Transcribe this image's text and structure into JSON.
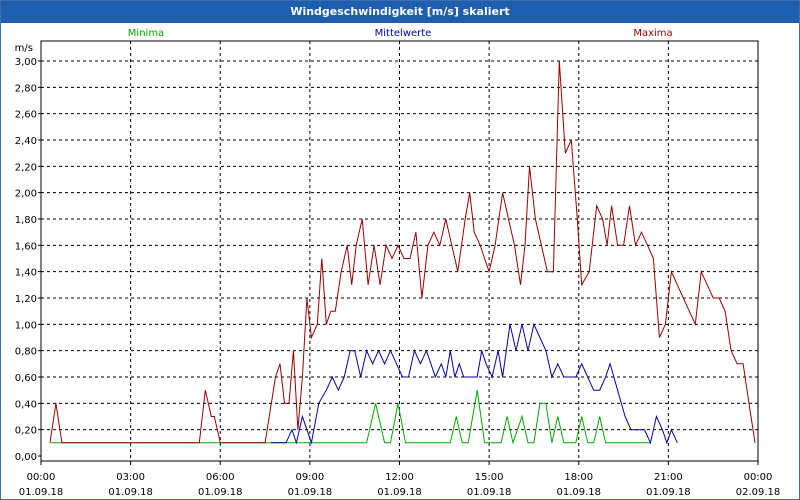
{
  "window": {
    "title": "Windgeschwindigkeit [m/s] skaliert"
  },
  "chart_data": {
    "type": "line",
    "title": "Windgeschwindigkeit [m/s] skaliert",
    "ylabel": "m/s",
    "xlabel": "",
    "ylim": [
      0,
      3.0
    ],
    "xlim_hours": [
      0,
      24
    ],
    "grid": true,
    "legend": "top",
    "y_ticks": [
      "0,00",
      "0,20",
      "0,40",
      "0,60",
      "0,80",
      "1,00",
      "1,20",
      "1,40",
      "1,60",
      "1,80",
      "2,00",
      "2,20",
      "2,40",
      "2,60",
      "2,80",
      "3,00"
    ],
    "x_ticks": [
      {
        "time": "00:00",
        "date": "01.09.18"
      },
      {
        "time": "03:00",
        "date": "01.09.18"
      },
      {
        "time": "06:00",
        "date": "01.09.18"
      },
      {
        "time": "09:00",
        "date": "01.09.18"
      },
      {
        "time": "12:00",
        "date": "01.09.18"
      },
      {
        "time": "15:00",
        "date": "01.09.18"
      },
      {
        "time": "18:00",
        "date": "01.09.18"
      },
      {
        "time": "21:00",
        "date": "01.09.18"
      },
      {
        "time": "00:00",
        "date": "02.09.18"
      }
    ],
    "series": [
      {
        "name": "Minima",
        "color": "#00aa00",
        "points": [
          [
            0.33,
            0.1
          ],
          [
            8.8,
            0.1
          ],
          [
            9.1,
            0.1
          ],
          [
            10.9,
            0.1
          ],
          [
            11.2,
            0.4
          ],
          [
            11.5,
            0.1
          ],
          [
            11.7,
            0.1
          ],
          [
            11.95,
            0.4
          ],
          [
            12.2,
            0.1
          ],
          [
            13.7,
            0.1
          ],
          [
            13.9,
            0.3
          ],
          [
            14.1,
            0.1
          ],
          [
            14.3,
            0.1
          ],
          [
            14.6,
            0.5
          ],
          [
            14.85,
            0.1
          ],
          [
            15.4,
            0.1
          ],
          [
            15.6,
            0.3
          ],
          [
            15.8,
            0.1
          ],
          [
            16.1,
            0.3
          ],
          [
            16.3,
            0.1
          ],
          [
            16.5,
            0.1
          ],
          [
            16.7,
            0.4
          ],
          [
            16.9,
            0.4
          ],
          [
            17.1,
            0.1
          ],
          [
            17.3,
            0.3
          ],
          [
            17.5,
            0.1
          ],
          [
            17.7,
            0.1
          ],
          [
            17.9,
            0.1
          ],
          [
            18.1,
            0.3
          ],
          [
            18.3,
            0.1
          ],
          [
            18.5,
            0.1
          ],
          [
            18.7,
            0.3
          ],
          [
            18.9,
            0.1
          ],
          [
            20.4,
            0.1
          ]
        ]
      },
      {
        "name": "Mittelwerte",
        "color": "#0000aa",
        "points": [
          [
            7.7,
            0.1
          ],
          [
            8.2,
            0.1
          ],
          [
            8.4,
            0.2
          ],
          [
            8.55,
            0.1
          ],
          [
            8.75,
            0.3
          ],
          [
            8.9,
            0.2
          ],
          [
            9.05,
            0.1
          ],
          [
            9.3,
            0.4
          ],
          [
            9.55,
            0.5
          ],
          [
            9.75,
            0.6
          ],
          [
            9.95,
            0.5
          ],
          [
            10.15,
            0.6
          ],
          [
            10.35,
            0.8
          ],
          [
            10.5,
            0.8
          ],
          [
            10.7,
            0.6
          ],
          [
            10.9,
            0.8
          ],
          [
            11.1,
            0.7
          ],
          [
            11.3,
            0.8
          ],
          [
            11.5,
            0.7
          ],
          [
            11.7,
            0.8
          ],
          [
            11.9,
            0.7
          ],
          [
            12.1,
            0.6
          ],
          [
            12.3,
            0.6
          ],
          [
            12.5,
            0.8
          ],
          [
            12.7,
            0.7
          ],
          [
            12.9,
            0.8
          ],
          [
            13.05,
            0.7
          ],
          [
            13.2,
            0.6
          ],
          [
            13.4,
            0.7
          ],
          [
            13.55,
            0.6
          ],
          [
            13.7,
            0.8
          ],
          [
            13.85,
            0.6
          ],
          [
            14.0,
            0.7
          ],
          [
            14.15,
            0.6
          ],
          [
            14.3,
            0.6
          ],
          [
            14.45,
            0.6
          ],
          [
            14.6,
            0.6
          ],
          [
            14.75,
            0.8
          ],
          [
            14.9,
            0.7
          ],
          [
            15.1,
            0.6
          ],
          [
            15.3,
            0.8
          ],
          [
            15.45,
            0.6
          ],
          [
            15.7,
            1.0
          ],
          [
            15.9,
            0.8
          ],
          [
            16.1,
            1.0
          ],
          [
            16.3,
            0.8
          ],
          [
            16.5,
            1.0
          ],
          [
            16.7,
            0.9
          ],
          [
            16.9,
            0.8
          ],
          [
            17.1,
            0.6
          ],
          [
            17.3,
            0.7
          ],
          [
            17.5,
            0.6
          ],
          [
            17.7,
            0.6
          ],
          [
            17.9,
            0.6
          ],
          [
            18.1,
            0.7
          ],
          [
            18.3,
            0.6
          ],
          [
            18.5,
            0.5
          ],
          [
            18.7,
            0.5
          ],
          [
            18.9,
            0.6
          ],
          [
            19.05,
            0.7
          ],
          [
            19.3,
            0.5
          ],
          [
            19.55,
            0.3
          ],
          [
            19.75,
            0.2
          ],
          [
            20.2,
            0.2
          ],
          [
            20.4,
            0.1
          ],
          [
            20.6,
            0.3
          ],
          [
            20.8,
            0.2
          ],
          [
            20.95,
            0.1
          ],
          [
            21.1,
            0.2
          ],
          [
            21.3,
            0.1
          ]
        ]
      },
      {
        "name": "Maxima",
        "color": "#990000",
        "points": [
          [
            0.3,
            0.1
          ],
          [
            0.5,
            0.4
          ],
          [
            0.7,
            0.1
          ],
          [
            5.3,
            0.1
          ],
          [
            5.5,
            0.5
          ],
          [
            5.7,
            0.3
          ],
          [
            5.8,
            0.3
          ],
          [
            6.0,
            0.1
          ],
          [
            7.5,
            0.1
          ],
          [
            7.85,
            0.6
          ],
          [
            8.0,
            0.7
          ],
          [
            8.15,
            0.4
          ],
          [
            8.3,
            0.4
          ],
          [
            8.45,
            0.8
          ],
          [
            8.6,
            0.2
          ],
          [
            8.75,
            0.6
          ],
          [
            8.9,
            1.2
          ],
          [
            9.05,
            0.9
          ],
          [
            9.25,
            1.0
          ],
          [
            9.4,
            1.5
          ],
          [
            9.55,
            1.0
          ],
          [
            9.7,
            1.1
          ],
          [
            9.85,
            1.1
          ],
          [
            10.05,
            1.4
          ],
          [
            10.25,
            1.6
          ],
          [
            10.4,
            1.3
          ],
          [
            10.55,
            1.6
          ],
          [
            10.75,
            1.8
          ],
          [
            10.95,
            1.3
          ],
          [
            11.15,
            1.6
          ],
          [
            11.35,
            1.3
          ],
          [
            11.55,
            1.6
          ],
          [
            11.75,
            1.5
          ],
          [
            11.95,
            1.6
          ],
          [
            12.15,
            1.5
          ],
          [
            12.35,
            1.5
          ],
          [
            12.55,
            1.7
          ],
          [
            12.75,
            1.2
          ],
          [
            12.95,
            1.6
          ],
          [
            13.15,
            1.7
          ],
          [
            13.35,
            1.6
          ],
          [
            13.55,
            1.8
          ],
          [
            13.75,
            1.6
          ],
          [
            13.95,
            1.4
          ],
          [
            14.2,
            1.8
          ],
          [
            14.35,
            2.0
          ],
          [
            14.5,
            1.7
          ],
          [
            14.7,
            1.6
          ],
          [
            14.85,
            1.5
          ],
          [
            15.0,
            1.4
          ],
          [
            15.2,
            1.6
          ],
          [
            15.45,
            2.0
          ],
          [
            15.65,
            1.8
          ],
          [
            15.85,
            1.6
          ],
          [
            16.05,
            1.3
          ],
          [
            16.2,
            1.6
          ],
          [
            16.35,
            2.2
          ],
          [
            16.55,
            1.8
          ],
          [
            16.75,
            1.6
          ],
          [
            16.95,
            1.4
          ],
          [
            17.15,
            1.4
          ],
          [
            17.35,
            3.0
          ],
          [
            17.55,
            2.3
          ],
          [
            17.75,
            2.4
          ],
          [
            17.95,
            1.8
          ],
          [
            18.1,
            1.3
          ],
          [
            18.35,
            1.4
          ],
          [
            18.6,
            1.9
          ],
          [
            18.8,
            1.8
          ],
          [
            18.95,
            1.6
          ],
          [
            19.1,
            1.9
          ],
          [
            19.3,
            1.6
          ],
          [
            19.5,
            1.6
          ],
          [
            19.7,
            1.9
          ],
          [
            19.9,
            1.6
          ],
          [
            20.1,
            1.7
          ],
          [
            20.3,
            1.6
          ],
          [
            20.5,
            1.5
          ],
          [
            20.7,
            0.9
          ],
          [
            20.9,
            1.0
          ],
          [
            21.1,
            1.4
          ],
          [
            21.3,
            1.3
          ],
          [
            21.5,
            1.2
          ],
          [
            21.7,
            1.1
          ],
          [
            21.9,
            1.0
          ],
          [
            22.1,
            1.4
          ],
          [
            22.3,
            1.3
          ],
          [
            22.5,
            1.2
          ],
          [
            22.7,
            1.2
          ],
          [
            22.9,
            1.1
          ],
          [
            23.1,
            0.8
          ],
          [
            23.3,
            0.7
          ],
          [
            23.5,
            0.7
          ],
          [
            23.7,
            0.4
          ],
          [
            23.9,
            0.1
          ]
        ]
      }
    ]
  }
}
